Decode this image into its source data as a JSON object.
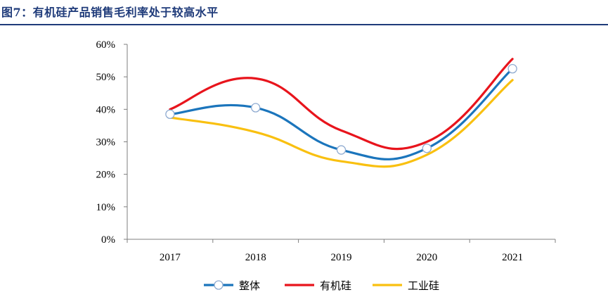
{
  "figure": {
    "title": "图7：有机硅产品销售毛利率处于较高水平"
  },
  "chart_data": {
    "type": "line",
    "categories": [
      "2017",
      "2018",
      "2019",
      "2020",
      "2021"
    ],
    "ylim": [
      0,
      60
    ],
    "yticks": [
      "0%",
      "10%",
      "20%",
      "30%",
      "40%",
      "50%",
      "60%"
    ],
    "smooth": true,
    "series": [
      {
        "name": "有机硅",
        "color": "#e8141c",
        "marker": "none",
        "values": [
          40,
          49.5,
          33.5,
          30,
          55.5
        ]
      },
      {
        "name": "工业硅",
        "color": "#f9c010",
        "marker": "none",
        "values": [
          37.5,
          33,
          24,
          26,
          49
        ]
      },
      {
        "name": "整体",
        "color": "#1b75bc",
        "marker": "circle",
        "values": [
          38.5,
          40.5,
          27.5,
          28,
          52.5
        ]
      }
    ],
    "legend": [
      "整体",
      "有机硅",
      "工业硅"
    ],
    "legend_position": "bottom-center"
  }
}
